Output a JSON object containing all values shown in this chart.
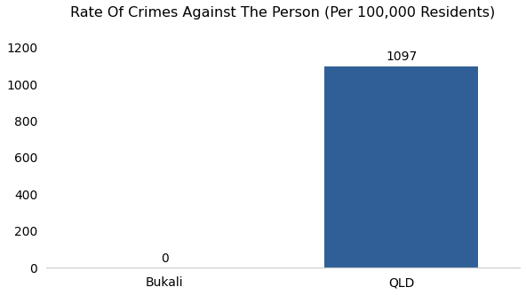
{
  "categories": [
    "Bukali",
    "QLD"
  ],
  "values": [
    0,
    1097
  ],
  "bar_colors": [
    "#2f5f96",
    "#2f5f96"
  ],
  "bar_labels": [
    "0",
    "1097"
  ],
  "title": "Rate Of Crimes Against The Person (Per 100,000 Residents)",
  "title_fontsize": 11.5,
  "ylim": [
    0,
    1300
  ],
  "yticks": [
    0,
    200,
    400,
    600,
    800,
    1000,
    1200
  ],
  "background_color": "#ffffff",
  "label_fontsize": 10,
  "tick_fontsize": 10,
  "bar_width": 0.65,
  "xlim": [
    -0.5,
    1.5
  ]
}
